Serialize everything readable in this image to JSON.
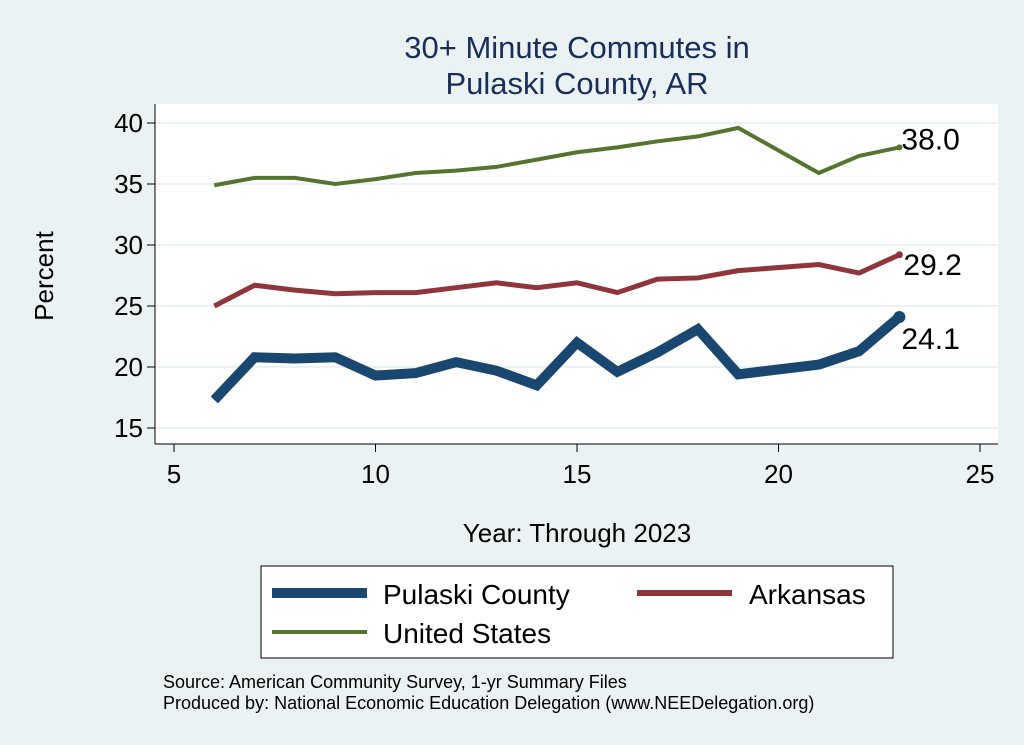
{
  "chart_data": {
    "type": "line",
    "title": [
      "30+ Minute Commutes in",
      "Pulaski County, AR"
    ],
    "xlabel": "Year: Through 2023",
    "ylabel": "Percent",
    "xlim": [
      5,
      25
    ],
    "ylim": [
      14,
      41
    ],
    "xticks": [
      5,
      10,
      15,
      20,
      25
    ],
    "yticks": [
      15,
      20,
      25,
      30,
      35,
      40
    ],
    "grid": true,
    "series": [
      {
        "name": "Pulaski County",
        "color": "#1a476f",
        "x": [
          6,
          7,
          8,
          9,
          10,
          11,
          12,
          13,
          14,
          15,
          16,
          17,
          18,
          19,
          21,
          22,
          23
        ],
        "y": [
          17.3,
          20.8,
          20.7,
          20.8,
          19.3,
          19.5,
          20.4,
          19.7,
          18.5,
          22.0,
          19.6,
          21.2,
          23.1,
          19.4,
          20.2,
          21.3,
          24.1
        ],
        "end_label": "24.1"
      },
      {
        "name": "Arkansas",
        "color": "#90353b",
        "x": [
          6,
          7,
          8,
          9,
          10,
          11,
          12,
          13,
          14,
          15,
          16,
          17,
          18,
          19,
          21,
          22,
          23
        ],
        "y": [
          25.0,
          26.7,
          26.3,
          26.0,
          26.1,
          26.1,
          26.5,
          26.9,
          26.5,
          26.9,
          26.1,
          27.2,
          27.3,
          27.9,
          28.4,
          27.7,
          29.2
        ],
        "end_label": "29.2"
      },
      {
        "name": "United States",
        "color": "#55752f",
        "x": [
          6,
          7,
          8,
          9,
          10,
          11,
          12,
          13,
          14,
          15,
          16,
          17,
          18,
          19,
          21,
          22,
          23
        ],
        "y": [
          34.9,
          35.5,
          35.5,
          35.0,
          35.4,
          35.9,
          36.1,
          36.4,
          37.0,
          37.6,
          38.0,
          38.5,
          38.9,
          39.6,
          35.9,
          37.3,
          38.0
        ],
        "end_label": "38.0"
      }
    ],
    "legend": {
      "placement": "bottom",
      "entries": [
        "Pulaski County",
        "Arkansas",
        "United States"
      ]
    }
  },
  "notes": {
    "source": "Source: American Community Survey, 1-yr Summary Files",
    "produced_by": "Produced by: National Economic Education Delegation (www.NEEDelegation.org)"
  }
}
